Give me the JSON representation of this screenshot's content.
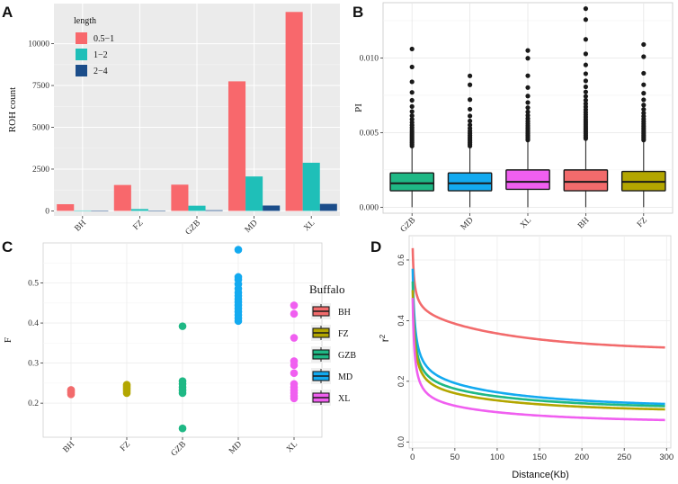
{
  "colors": {
    "BH": "#f26b6c",
    "FZ": "#b3a600",
    "GZB": "#1fb885",
    "MD": "#13aaf0",
    "XL": "#f05ff0",
    "bin1": "#f8686c",
    "bin2": "#1fbfb8",
    "bin3": "#1b4d8a",
    "panel_bg": "#ebebeb"
  },
  "panels": {
    "a": "A",
    "b": "B",
    "c": "C",
    "d": "D"
  },
  "chart_data": [
    {
      "id": "A",
      "type": "bar",
      "categories": [
        "BH",
        "FZ",
        "GZB",
        "MD",
        "XL"
      ],
      "series": [
        {
          "name": "0.5−1",
          "values": [
            400,
            1550,
            1570,
            7750,
            11900
          ]
        },
        {
          "name": "1−2",
          "values": [
            25,
            110,
            310,
            2060,
            2880
          ]
        },
        {
          "name": "2−4",
          "values": [
            5,
            15,
            40,
            320,
            420
          ]
        }
      ],
      "ylabel": "ROH count",
      "legend_title": "length",
      "yticks": [
        0,
        2500,
        5000,
        7500,
        10000
      ],
      "ylim": [
        -300,
        12400
      ]
    },
    {
      "id": "B",
      "type": "box",
      "categories": [
        "GZB",
        "MD",
        "XL",
        "BH",
        "FZ"
      ],
      "ylabel": "PI",
      "yticks": [
        "0.000",
        "0.005",
        "0.010"
      ],
      "ytick_values": [
        0,
        0.005,
        0.01
      ],
      "ylim": [
        -0.0004,
        0.0137
      ],
      "boxes": [
        {
          "q1": 0.0011,
          "median": 0.0016,
          "q3": 0.0023,
          "whisker_low": 0,
          "whisker_high": 0.0041,
          "outlier_max": 0.0106
        },
        {
          "q1": 0.0011,
          "median": 0.0016,
          "q3": 0.0023,
          "whisker_low": 0,
          "whisker_high": 0.0041,
          "outlier_max": 0.0088
        },
        {
          "q1": 0.0012,
          "median": 0.0017,
          "q3": 0.0025,
          "whisker_low": 0,
          "whisker_high": 0.0045,
          "outlier_max": 0.0105
        },
        {
          "q1": 0.0011,
          "median": 0.0017,
          "q3": 0.0025,
          "whisker_low": 0,
          "whisker_high": 0.0046,
          "outlier_max": 0.0133
        },
        {
          "q1": 0.0011,
          "median": 0.0017,
          "q3": 0.0024,
          "whisker_low": 0,
          "whisker_high": 0.0045,
          "outlier_max": 0.0109
        }
      ]
    },
    {
      "id": "C",
      "type": "scatter",
      "categories": [
        "BH",
        "FZ",
        "GZB",
        "MD",
        "XL"
      ],
      "ylabel": "F",
      "legend_title": "Buffalo",
      "yticks": [
        "0.2",
        "0.3",
        "0.4",
        "0.5"
      ],
      "ytick_values": [
        0.2,
        0.3,
        0.4,
        0.5
      ],
      "ylim": [
        0.115,
        0.6
      ],
      "points": [
        [
          0.222,
          0.226,
          0.23,
          0.233
        ],
        [
          0.225,
          0.23,
          0.234,
          0.238,
          0.242,
          0.246
        ],
        [
          0.137,
          0.225,
          0.232,
          0.24,
          0.248,
          0.255,
          0.392
        ],
        [
          0.405,
          0.412,
          0.42,
          0.428,
          0.436,
          0.444,
          0.452,
          0.46,
          0.468,
          0.476,
          0.486,
          0.497,
          0.508,
          0.515,
          0.583
        ],
        [
          0.212,
          0.218,
          0.225,
          0.232,
          0.24,
          0.248,
          0.275,
          0.295,
          0.305,
          0.363,
          0.423,
          0.444
        ]
      ]
    },
    {
      "id": "D",
      "type": "line",
      "xlabel": "Distance(Kb)",
      "ylabel": "r2",
      "xticks": [
        0,
        50,
        100,
        150,
        200,
        250,
        300
      ],
      "yticks": [
        "0.0",
        "0.2",
        "0.4",
        "0.6"
      ],
      "ytick_values": [
        0,
        0.2,
        0.4,
        0.6
      ],
      "xlim": [
        -4,
        305
      ],
      "ylim": [
        -0.02,
        0.68
      ],
      "series": [
        {
          "name": "BH",
          "r0": 0.67,
          "asym": 0.298,
          "a": 0.118,
          "k": 18
        },
        {
          "name": "FZ",
          "r0": 0.54,
          "asym": 0.097,
          "a": 0.062,
          "k": 22
        },
        {
          "name": "GZB",
          "r0": 0.57,
          "asym": 0.107,
          "a": 0.068,
          "k": 22
        },
        {
          "name": "MD",
          "r0": 0.61,
          "asym": 0.112,
          "a": 0.082,
          "k": 25
        },
        {
          "name": "XL",
          "r0": 0.52,
          "asym": 0.063,
          "a": 0.052,
          "k": 20
        }
      ]
    }
  ]
}
